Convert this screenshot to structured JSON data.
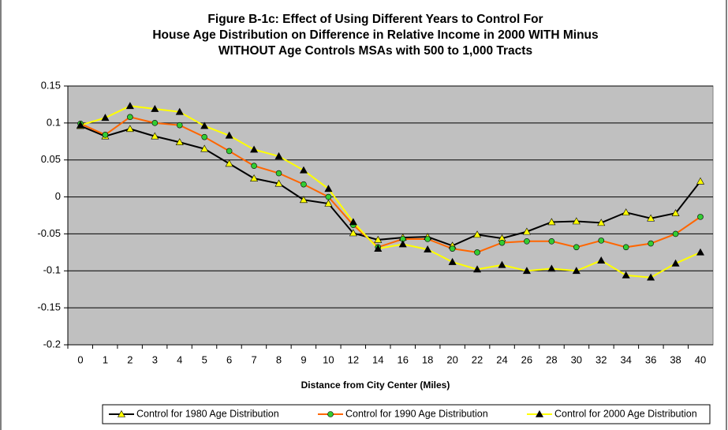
{
  "chart_data": {
    "type": "line",
    "title": "Figure B-1c: Effect of Using Different Years to Control For House Age Distribution on Difference in Relative Income in 2000 WITH Minus WITHOUT Age Controls MSAs with 500 to 1,000 Tracts",
    "x_label": "Distance from City Center (Miles)",
    "categories": [
      "0",
      "1",
      "2",
      "3",
      "4",
      "5",
      "6",
      "7",
      "8",
      "9",
      "10",
      "12",
      "14",
      "16",
      "18",
      "20",
      "22",
      "24",
      "26",
      "28",
      "30",
      "32",
      "34",
      "36",
      "38",
      "40"
    ],
    "series": [
      {
        "name": "Control for 1980 Age Distribution",
        "color": "#000000",
        "marker": "triangle",
        "marker_color": "#ffff00",
        "values": [
          0.096,
          0.082,
          0.092,
          0.082,
          0.074,
          0.065,
          0.045,
          0.025,
          0.018,
          -0.004,
          -0.009,
          -0.049,
          -0.058,
          -0.055,
          -0.054,
          -0.066,
          -0.051,
          -0.056,
          -0.047,
          -0.034,
          -0.033,
          -0.035,
          -0.021,
          -0.029,
          -0.022,
          0.021
        ]
      },
      {
        "name": "Control for 1990 Age Distribution",
        "color": "#ff6600",
        "marker": "circle",
        "marker_color": "#33cc33",
        "values": [
          0.099,
          0.084,
          0.108,
          0.1,
          0.097,
          0.081,
          0.062,
          0.042,
          0.032,
          0.017,
          0.0,
          -0.038,
          -0.068,
          -0.057,
          -0.057,
          -0.07,
          -0.075,
          -0.062,
          -0.06,
          -0.06,
          -0.068,
          -0.059,
          -0.068,
          -0.063,
          -0.05,
          -0.027
        ]
      },
      {
        "name": "Control for 2000 Age Distribution",
        "color": "#ffff00",
        "marker": "triangle",
        "marker_color": "#000000",
        "values": [
          0.097,
          0.107,
          0.123,
          0.119,
          0.115,
          0.096,
          0.083,
          0.064,
          0.055,
          0.036,
          0.011,
          -0.034,
          -0.07,
          -0.064,
          -0.071,
          -0.088,
          -0.098,
          -0.092,
          -0.1,
          -0.097,
          -0.1,
          -0.086,
          -0.106,
          -0.109,
          -0.09,
          -0.075
        ]
      }
    ],
    "ylim": [
      -0.2,
      0.15
    ],
    "yticks": [
      -0.2,
      -0.15,
      -0.1,
      -0.05,
      0,
      0.05,
      0.1,
      0.15
    ],
    "grid": true,
    "legend": "bottom",
    "plot_background": "#c0c0c0"
  }
}
